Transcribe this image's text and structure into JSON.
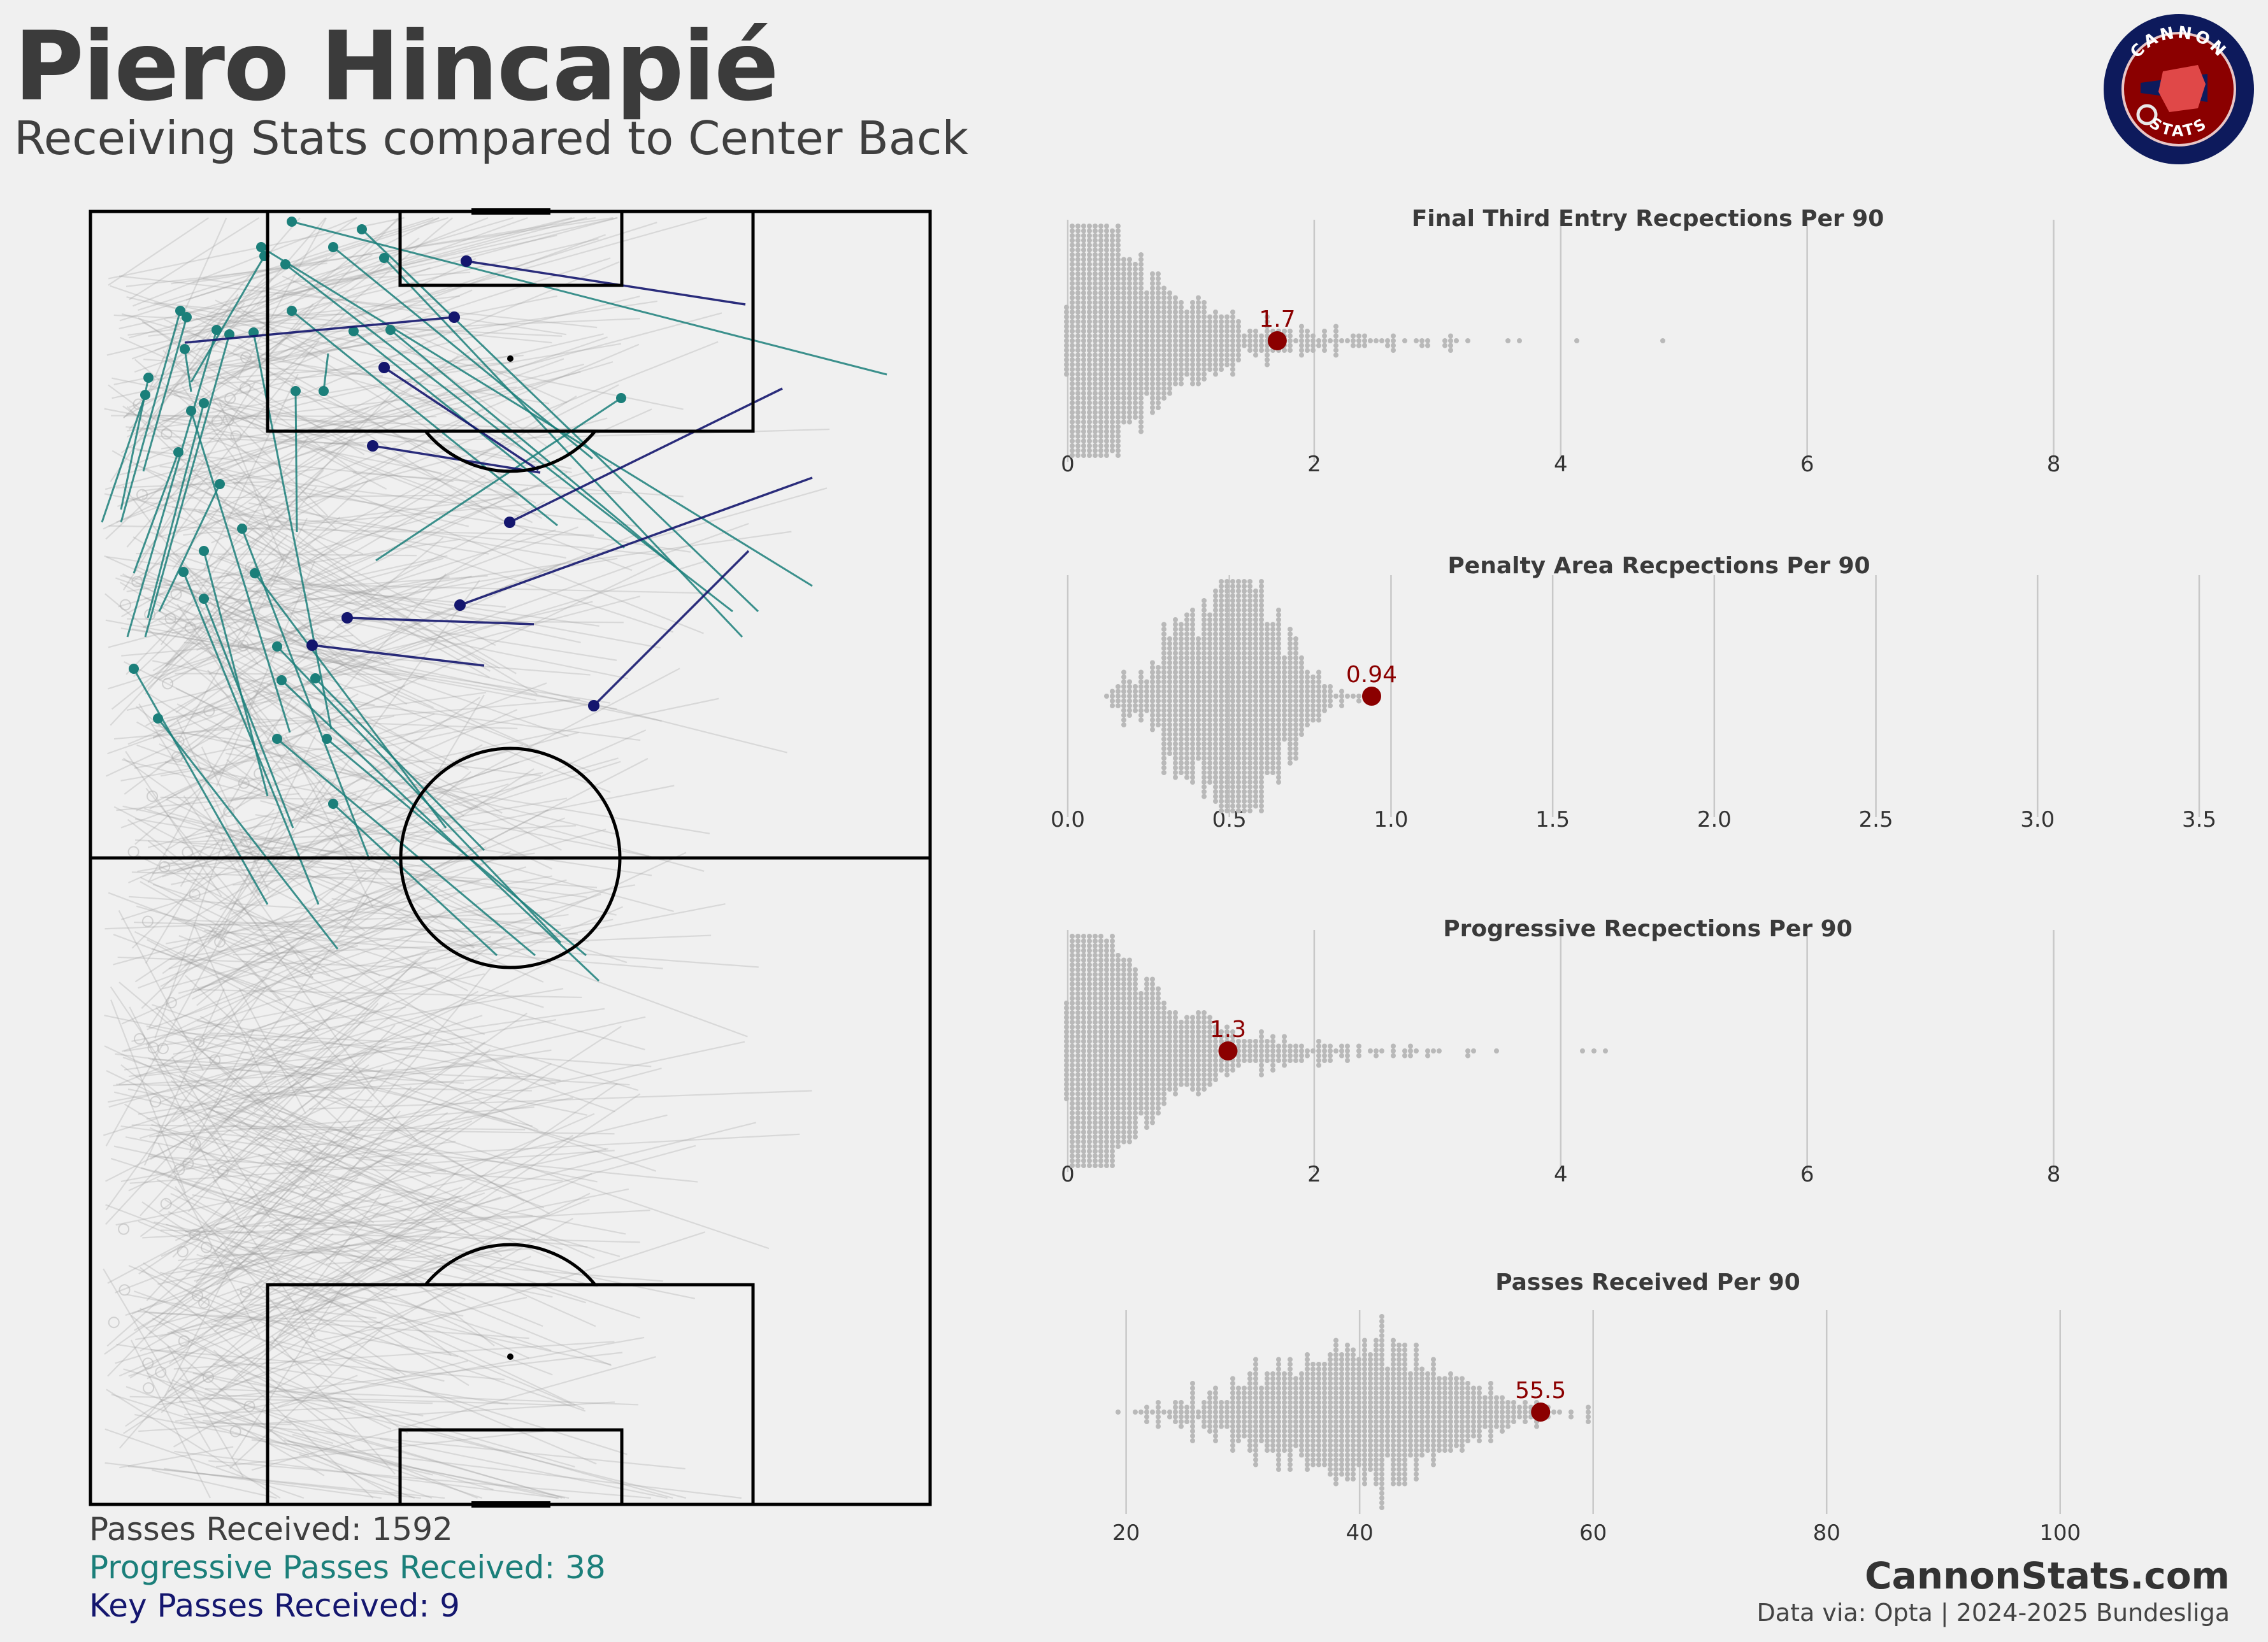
{
  "header": {
    "title": "Piero Hincapié",
    "subtitle": "Receiving Stats compared to Center Back"
  },
  "logo": {
    "top_text": "CANNON",
    "bottom_text": "STATS",
    "colors": {
      "ring": "#0d1a5c",
      "inner": "#8b0000",
      "shield": "#e04848"
    }
  },
  "legend": {
    "passes_received_label": "Passes Received:",
    "passes_received_value": "1592",
    "progressive_label": "Progressive Passes Received:",
    "progressive_value": "38",
    "key_label": "Key Passes Received:",
    "key_value": "9"
  },
  "colors": {
    "grey": "#9a9a9a",
    "teal": "#1b7f7a",
    "navy": "#14166e",
    "highlight": "#8b0000",
    "pitch_line": "#000000"
  },
  "footer": {
    "brand": "CannonStats.com",
    "source": "Data via: Opta | 2024-2025 Bundesliga"
  },
  "chart_data": [
    {
      "type": "scatter",
      "title": "Final Third Entry Recpections Per 90",
      "xlim": [
        0,
        9
      ],
      "ticks": [
        0,
        2,
        4,
        6,
        8
      ],
      "tick_labels": [
        "0",
        "2",
        "4",
        "6",
        "8"
      ],
      "player_value": 1.7,
      "player_label": "1.7",
      "grid": true
    },
    {
      "type": "scatter",
      "title": "Penalty Area Recpections Per 90",
      "xlim": [
        0,
        3.5
      ],
      "ticks": [
        0,
        0.5,
        1.0,
        1.5,
        2.0,
        2.5,
        3.0,
        3.5
      ],
      "tick_labels": [
        "0.0",
        "0.5",
        "1.0",
        "1.5",
        "2.0",
        "2.5",
        "3.0",
        "3.5"
      ],
      "player_value": 0.94,
      "player_label": "0.94",
      "grid": true
    },
    {
      "type": "scatter",
      "title": "Progressive Recpections Per 90",
      "xlim": [
        0,
        9
      ],
      "ticks": [
        0,
        2,
        4,
        6,
        8
      ],
      "tick_labels": [
        "0",
        "2",
        "4",
        "6",
        "8"
      ],
      "player_value": 1.3,
      "player_label": "1.3",
      "grid": true
    },
    {
      "type": "scatter",
      "title": "Passes Received Per 90",
      "xlim": [
        15,
        110
      ],
      "ticks": [
        20,
        40,
        60,
        80,
        100
      ],
      "tick_labels": [
        "20",
        "40",
        "60",
        "80",
        "100"
      ],
      "player_value": 55.5,
      "player_label": "55.5",
      "grid": true
    }
  ]
}
